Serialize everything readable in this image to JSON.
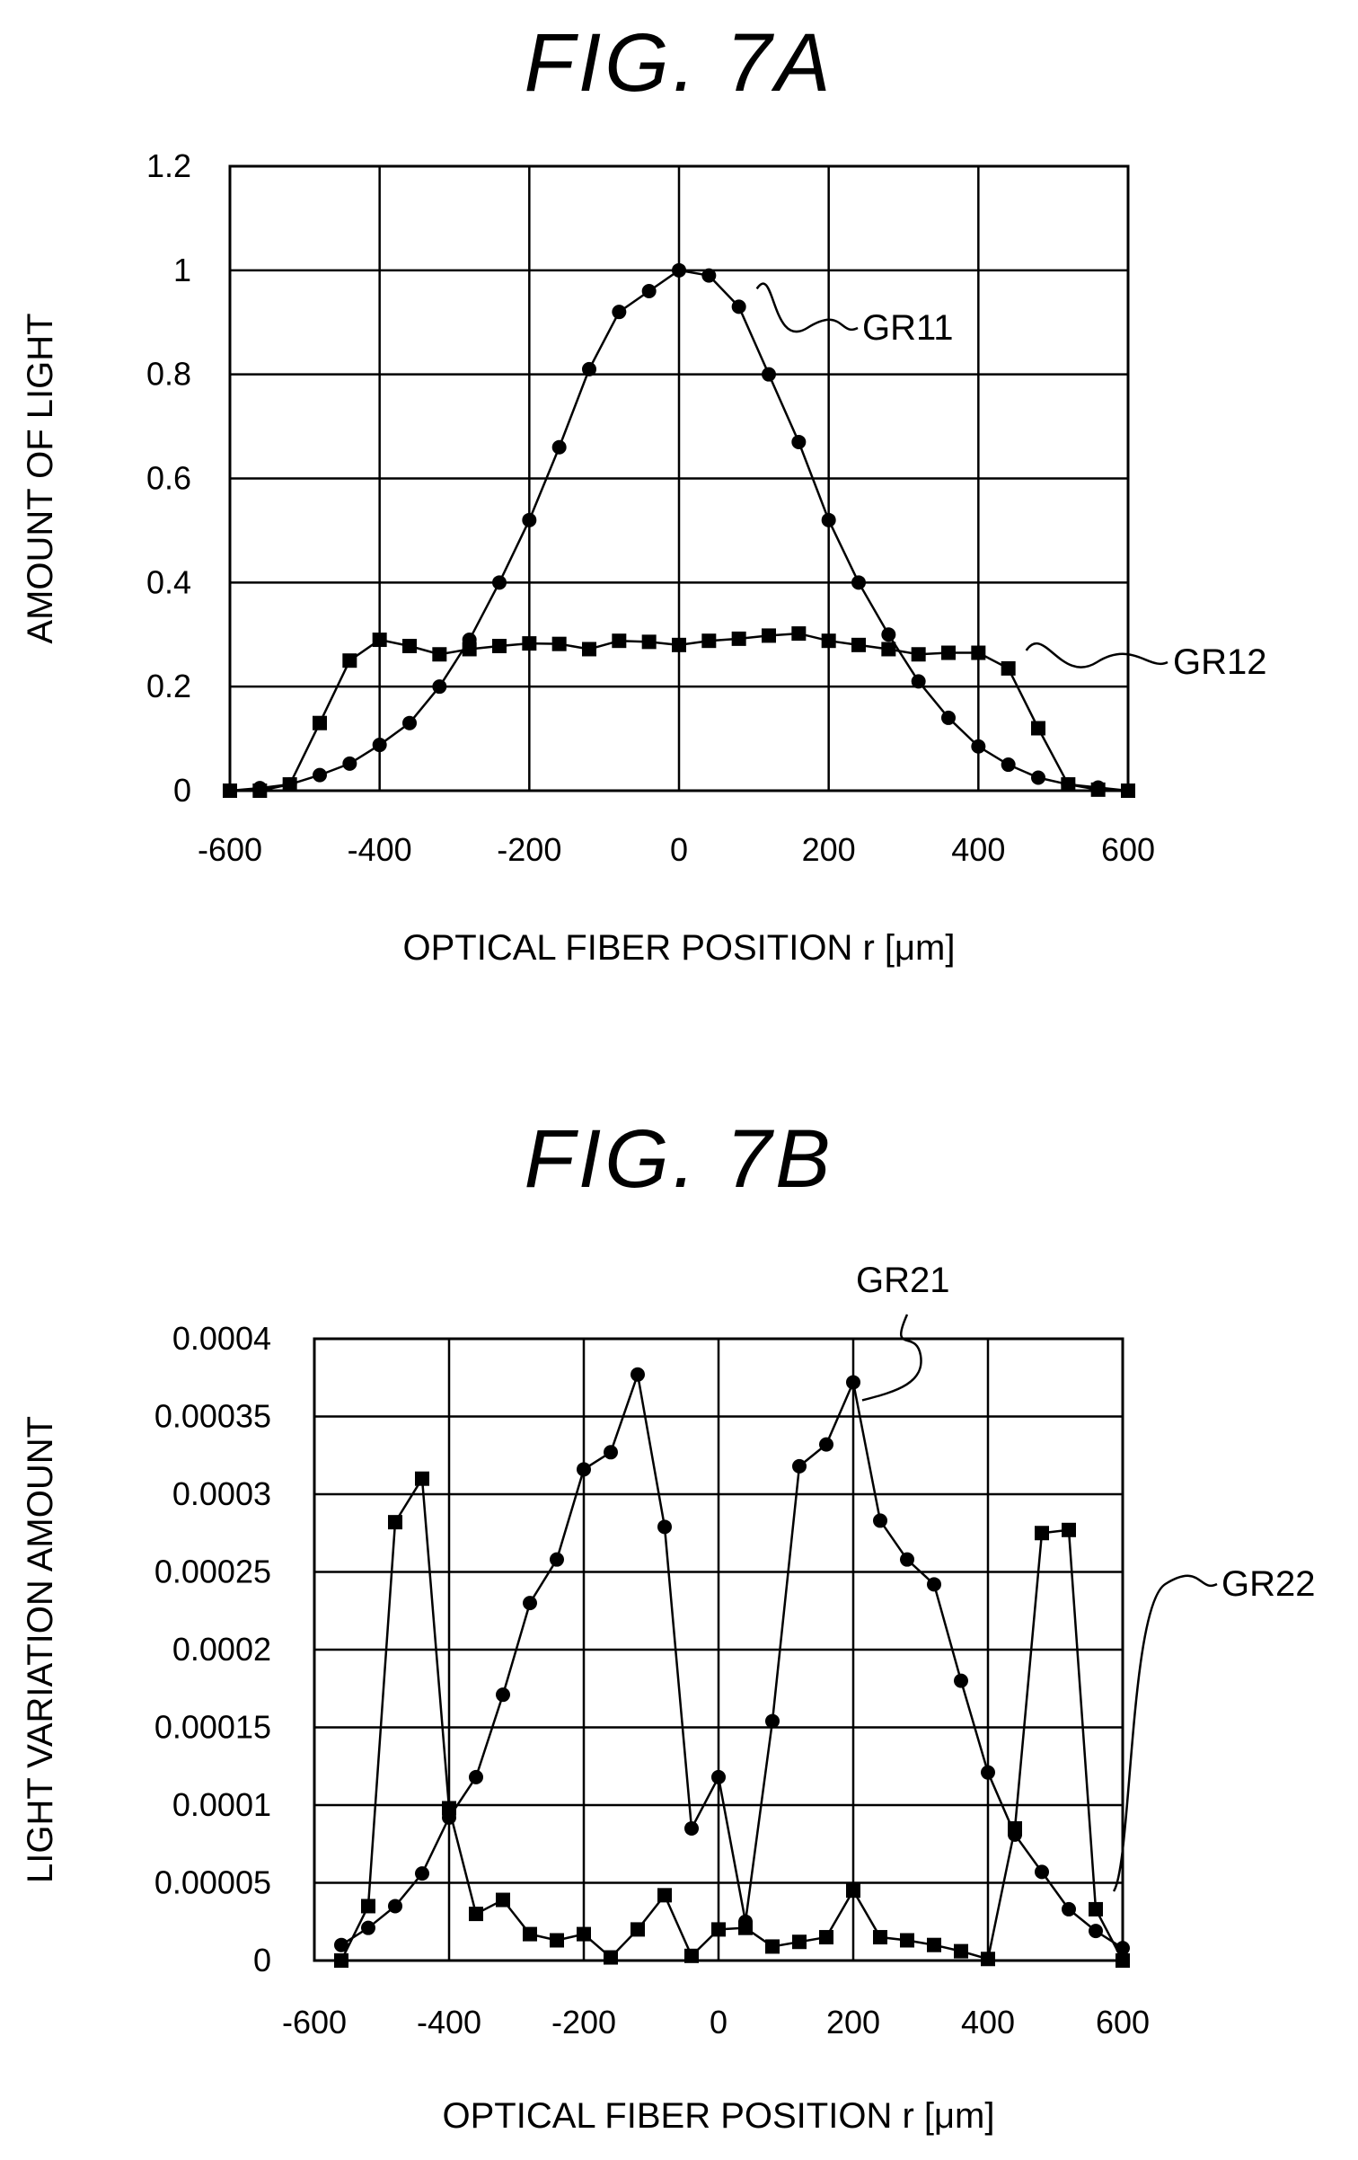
{
  "chart_data": [
    {
      "type": "line",
      "title": "FIG. 7A",
      "xlabel": "OPTICAL FIBER POSITION r [μm]",
      "ylabel": "AMOUNT OF LIGHT",
      "xlim": [
        -600,
        600
      ],
      "ylim": [
        0,
        1.2
      ],
      "xticks": [
        "-600",
        "-400",
        "-200",
        "0",
        "200",
        "400",
        "600"
      ],
      "yticks": [
        "0",
        "0.2",
        "0.4",
        "0.6",
        "0.8",
        "1",
        "1.2"
      ],
      "grid": true,
      "series": [
        {
          "name": "GR11",
          "marker": "circle",
          "x": [
            -600,
            -560,
            -520,
            -480,
            -440,
            -400,
            -360,
            -320,
            -280,
            -240,
            -200,
            -160,
            -120,
            -80,
            -40,
            0,
            40,
            80,
            120,
            160,
            200,
            240,
            280,
            320,
            360,
            400,
            440,
            480,
            520,
            560,
            600
          ],
          "y": [
            0,
            0.005,
            0.012,
            0.03,
            0.052,
            0.088,
            0.13,
            0.2,
            0.29,
            0.4,
            0.52,
            0.66,
            0.81,
            0.92,
            0.96,
            1.0,
            0.99,
            0.93,
            0.8,
            0.67,
            0.52,
            0.4,
            0.3,
            0.21,
            0.14,
            0.085,
            0.05,
            0.025,
            0.012,
            0.006,
            0
          ]
        },
        {
          "name": "GR12",
          "marker": "square",
          "x": [
            -600,
            -560,
            -520,
            -480,
            -440,
            -400,
            -360,
            -320,
            -280,
            -240,
            -200,
            -160,
            -120,
            -80,
            -40,
            0,
            40,
            80,
            120,
            160,
            200,
            240,
            280,
            320,
            360,
            400,
            440,
            480,
            520,
            560,
            600
          ],
          "y": [
            0,
            0,
            0.012,
            0.13,
            0.25,
            0.29,
            0.278,
            0.262,
            0.272,
            0.278,
            0.283,
            0.282,
            0.272,
            0.288,
            0.286,
            0.28,
            0.288,
            0.292,
            0.298,
            0.302,
            0.288,
            0.28,
            0.272,
            0.262,
            0.265,
            0.265,
            0.235,
            0.12,
            0.012,
            0.002,
            0
          ]
        }
      ]
    },
    {
      "type": "line",
      "title": "FIG. 7B",
      "xlabel": "OPTICAL FIBER POSITION r [μm]",
      "ylabel": "LIGHT VARIATION AMOUNT",
      "xlim": [
        -600,
        600
      ],
      "ylim": [
        0,
        0.0004
      ],
      "xticks": [
        "-600",
        "-400",
        "-200",
        "0",
        "200",
        "400",
        "600"
      ],
      "yticks": [
        "0",
        "0.00005",
        "0.0001",
        "0.00015",
        "0.0002",
        "0.00025",
        "0.0003",
        "0.00035",
        "0.0004"
      ],
      "grid": true,
      "series": [
        {
          "name": "GR21",
          "marker": "circle",
          "x": [
            -560,
            -520,
            -480,
            -440,
            -400,
            -360,
            -320,
            -280,
            -240,
            -200,
            -160,
            -120,
            -80,
            -40,
            0,
            40,
            80,
            120,
            160,
            200,
            240,
            280,
            320,
            360,
            400,
            440,
            480,
            520,
            560,
            600
          ],
          "y": [
            1e-05,
            2.1e-05,
            3.5e-05,
            5.6e-05,
            9.2e-05,
            0.000118,
            0.000171,
            0.00023,
            0.000258,
            0.000316,
            0.000327,
            0.000377,
            0.000279,
            8.5e-05,
            0.000118,
            2.5e-05,
            0.000154,
            0.000318,
            0.000332,
            0.000372,
            0.000283,
            0.000258,
            0.000242,
            0.00018,
            0.000121,
            8.1e-05,
            5.7e-05,
            3.3e-05,
            1.9e-05,
            8e-06
          ]
        },
        {
          "name": "GR22",
          "marker": "square",
          "x": [
            -560,
            -520,
            -480,
            -440,
            -400,
            -360,
            -320,
            -280,
            -240,
            -200,
            -160,
            -120,
            -80,
            -40,
            0,
            40,
            80,
            120,
            160,
            200,
            240,
            280,
            320,
            360,
            400,
            440,
            480,
            520,
            560,
            600
          ],
          "y": [
            0,
            3.5e-05,
            0.000282,
            0.00031,
            9.8e-05,
            3e-05,
            3.9e-05,
            1.7e-05,
            1.3e-05,
            1.7e-05,
            2e-06,
            2e-05,
            4.2e-05,
            3e-06,
            2e-05,
            2.1e-05,
            9e-06,
            1.2e-05,
            1.5e-05,
            4.5e-05,
            1.5e-05,
            1.3e-05,
            1e-05,
            6e-06,
            1e-06,
            8.5e-05,
            0.000275,
            0.000277,
            3.3e-05,
            0
          ]
        }
      ]
    }
  ]
}
